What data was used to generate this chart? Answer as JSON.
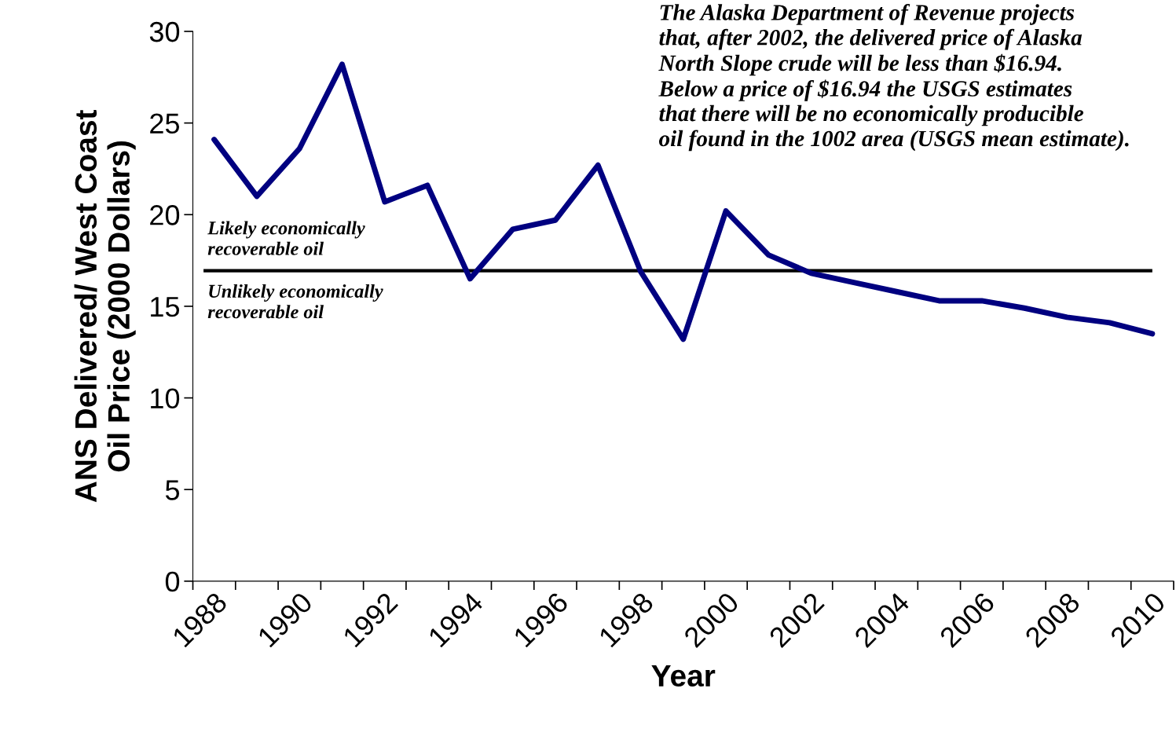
{
  "chart_data": {
    "type": "line",
    "xlabel": "Year",
    "ylabel": "ANS Delivered/ West Coast\nOil Price (2000 Dollars)",
    "categories": [
      "1988",
      null,
      "1990",
      null,
      "1992",
      null,
      "1994",
      null,
      "1996",
      null,
      "1998",
      null,
      "2000",
      null,
      "2002",
      null,
      "2004",
      null,
      "2006",
      null,
      "2008",
      null,
      "2010"
    ],
    "series": [
      {
        "color": "#000080",
        "values": [
          24.1,
          21.0,
          23.6,
          28.2,
          20.7,
          21.6,
          16.5,
          19.2,
          19.7,
          22.7,
          16.9,
          13.2,
          20.2,
          17.8,
          16.8,
          16.3,
          15.8,
          15.3,
          15.3,
          14.9,
          14.4,
          14.1,
          13.5
        ]
      }
    ],
    "ylim": [
      0,
      30
    ],
    "yticks": [
      0,
      5,
      10,
      15,
      20,
      25,
      30
    ],
    "grid": false,
    "legend": false,
    "marker": "none",
    "line_style": "solid",
    "ref_lines": [
      {
        "axis": "y",
        "value": 16.94,
        "color": "#000000",
        "line_style": "solid"
      }
    ],
    "annotations": [
      "The Alaska Department of Revenue projects\nthat, after 2002, the delivered price of Alaska\nNorth Slope crude will be less than $16.94.\nBelow a price of $16.94 the USGS estimates\nthat there will be no economically producible\noil found in the 1002 area (USGS mean estimate).",
      "Likely economically\nrecoverable oil",
      "Unlikely economically\nrecoverable oil"
    ]
  }
}
